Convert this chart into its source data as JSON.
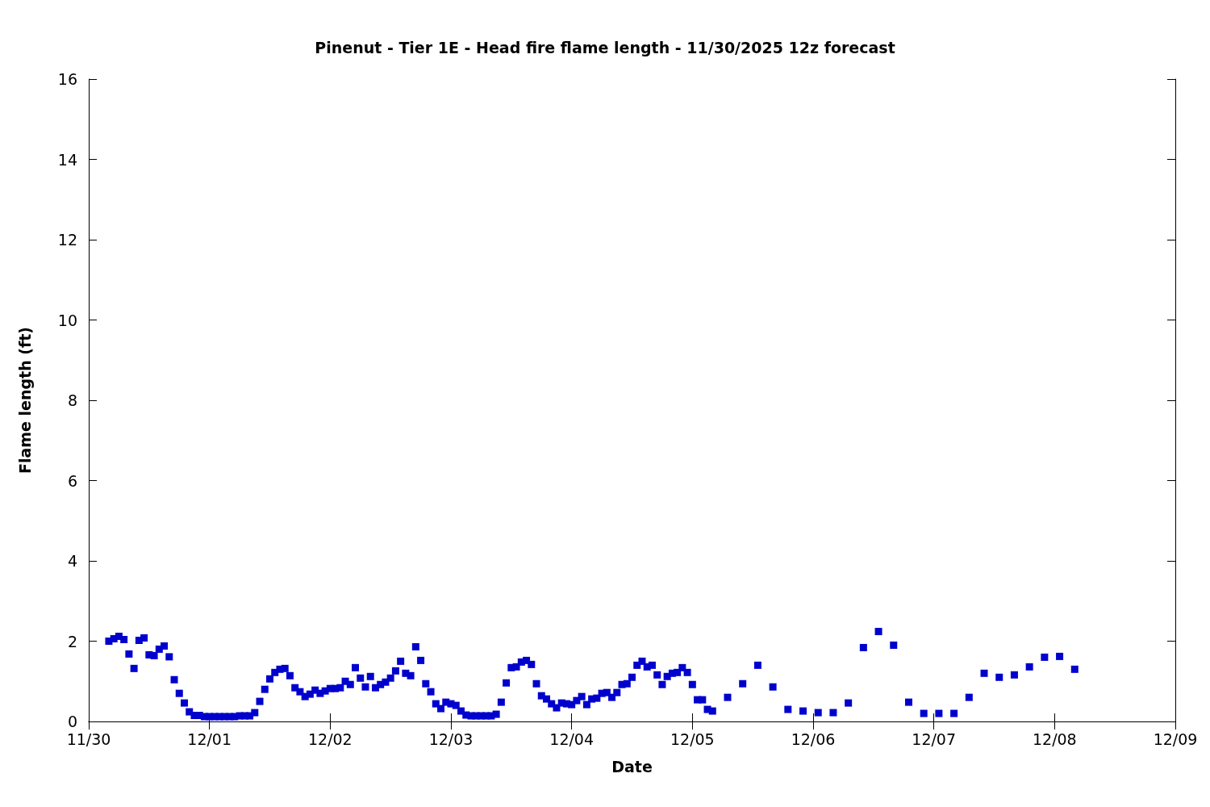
{
  "chart_data": {
    "type": "scatter",
    "title": "Pinenut - Tier 1E - Head fire flame length - 11/30/2025 12z forecast",
    "xlabel": "Date",
    "ylabel": "Flame length (ft)",
    "x": [
      "2025-11-30T04:00",
      "2025-11-30T05:00",
      "2025-11-30T06:00",
      "2025-11-30T07:00",
      "2025-11-30T08:00",
      "2025-11-30T09:00",
      "2025-11-30T10:00",
      "2025-11-30T11:00",
      "2025-11-30T12:00",
      "2025-11-30T13:00",
      "2025-11-30T14:00",
      "2025-11-30T15:00",
      "2025-11-30T16:00",
      "2025-11-30T17:00",
      "2025-11-30T18:00",
      "2025-11-30T19:00",
      "2025-11-30T20:00",
      "2025-11-30T21:00",
      "2025-11-30T22:00",
      "2025-11-30T23:00",
      "2025-12-01T00:00",
      "2025-12-01T01:00",
      "2025-12-01T02:00",
      "2025-12-01T03:00",
      "2025-12-01T04:00",
      "2025-12-01T05:00",
      "2025-12-01T06:00",
      "2025-12-01T07:00",
      "2025-12-01T08:00",
      "2025-12-01T09:00",
      "2025-12-01T10:00",
      "2025-12-01T11:00",
      "2025-12-01T12:00",
      "2025-12-01T13:00",
      "2025-12-01T14:00",
      "2025-12-01T15:00",
      "2025-12-01T16:00",
      "2025-12-01T17:00",
      "2025-12-01T18:00",
      "2025-12-01T19:00",
      "2025-12-01T20:00",
      "2025-12-01T21:00",
      "2025-12-01T22:00",
      "2025-12-01T23:00",
      "2025-12-02T00:00",
      "2025-12-02T01:00",
      "2025-12-02T02:00",
      "2025-12-02T03:00",
      "2025-12-02T04:00",
      "2025-12-02T05:00",
      "2025-12-02T06:00",
      "2025-12-02T07:00",
      "2025-12-02T08:00",
      "2025-12-02T09:00",
      "2025-12-02T10:00",
      "2025-12-02T11:00",
      "2025-12-02T12:00",
      "2025-12-02T13:00",
      "2025-12-02T14:00",
      "2025-12-02T15:00",
      "2025-12-02T16:00",
      "2025-12-02T17:00",
      "2025-12-02T18:00",
      "2025-12-02T19:00",
      "2025-12-02T20:00",
      "2025-12-02T21:00",
      "2025-12-02T22:00",
      "2025-12-02T23:00",
      "2025-12-03T00:00",
      "2025-12-03T01:00",
      "2025-12-03T02:00",
      "2025-12-03T03:00",
      "2025-12-03T04:00",
      "2025-12-03T05:00",
      "2025-12-03T06:00",
      "2025-12-03T07:00",
      "2025-12-03T08:00",
      "2025-12-03T09:00",
      "2025-12-03T10:00",
      "2025-12-03T11:00",
      "2025-12-03T12:00",
      "2025-12-03T13:00",
      "2025-12-03T14:00",
      "2025-12-03T15:00",
      "2025-12-03T16:00",
      "2025-12-03T17:00",
      "2025-12-03T18:00",
      "2025-12-03T19:00",
      "2025-12-03T20:00",
      "2025-12-03T21:00",
      "2025-12-03T22:00",
      "2025-12-03T23:00",
      "2025-12-04T00:00",
      "2025-12-04T01:00",
      "2025-12-04T02:00",
      "2025-12-04T03:00",
      "2025-12-04T04:00",
      "2025-12-04T05:00",
      "2025-12-04T06:00",
      "2025-12-04T07:00",
      "2025-12-04T08:00",
      "2025-12-04T09:00",
      "2025-12-04T10:00",
      "2025-12-04T11:00",
      "2025-12-04T12:00",
      "2025-12-04T13:00",
      "2025-12-04T14:00",
      "2025-12-04T15:00",
      "2025-12-04T16:00",
      "2025-12-04T17:00",
      "2025-12-04T18:00",
      "2025-12-04T19:00",
      "2025-12-04T20:00",
      "2025-12-04T21:00",
      "2025-12-04T22:00",
      "2025-12-04T23:00",
      "2025-12-05T00:00",
      "2025-12-05T01:00",
      "2025-12-05T02:00",
      "2025-12-05T03:00",
      "2025-12-05T04:00",
      "2025-12-05T07:00",
      "2025-12-05T10:00",
      "2025-12-05T13:00",
      "2025-12-05T16:00",
      "2025-12-05T19:00",
      "2025-12-05T22:00",
      "2025-12-06T01:00",
      "2025-12-06T04:00",
      "2025-12-06T07:00",
      "2025-12-06T10:00",
      "2025-12-06T13:00",
      "2025-12-06T16:00",
      "2025-12-06T19:00",
      "2025-12-06T22:00",
      "2025-12-07T01:00",
      "2025-12-07T04:00",
      "2025-12-07T07:00",
      "2025-12-07T10:00",
      "2025-12-07T13:00",
      "2025-12-07T16:00",
      "2025-12-07T19:00",
      "2025-12-07T22:00",
      "2025-12-08T01:00",
      "2025-12-08T04:00"
    ],
    "values": [
      2.0,
      2.06,
      2.12,
      2.04,
      1.68,
      1.32,
      2.02,
      2.08,
      1.66,
      1.64,
      1.8,
      1.88,
      1.61,
      1.04,
      0.7,
      0.46,
      0.24,
      0.15,
      0.15,
      0.12,
      0.12,
      0.12,
      0.12,
      0.12,
      0.12,
      0.12,
      0.14,
      0.14,
      0.14,
      0.22,
      0.5,
      0.8,
      1.06,
      1.22,
      1.3,
      1.32,
      1.14,
      0.84,
      0.74,
      0.62,
      0.68,
      0.78,
      0.7,
      0.76,
      0.82,
      0.82,
      0.84,
      1.0,
      0.92,
      1.34,
      1.08,
      0.86,
      1.12,
      0.84,
      0.92,
      0.98,
      1.08,
      1.26,
      1.5,
      1.2,
      1.14,
      1.86,
      1.52,
      0.94,
      0.74,
      0.44,
      0.32,
      0.48,
      0.44,
      0.4,
      0.26,
      0.16,
      0.14,
      0.14,
      0.14,
      0.14,
      0.14,
      0.18,
      0.48,
      0.96,
      1.34,
      1.36,
      1.48,
      1.52,
      1.42,
      0.94,
      0.64,
      0.56,
      0.44,
      0.34,
      0.46,
      0.44,
      0.42,
      0.52,
      0.62,
      0.42,
      0.56,
      0.58,
      0.7,
      0.72,
      0.6,
      0.72,
      0.92,
      0.94,
      1.1,
      1.4,
      1.5,
      1.36,
      1.4,
      1.16,
      0.92,
      1.12,
      1.2,
      1.22,
      1.34,
      1.22,
      0.92,
      0.54,
      0.54,
      0.3,
      0.26,
      0.6,
      0.94,
      1.4,
      0.86,
      0.3,
      0.26,
      0.22,
      0.22,
      0.46,
      1.84,
      2.24,
      1.9,
      0.48,
      0.2,
      0.2,
      0.2,
      0.6,
      1.2,
      1.1,
      1.16,
      1.36,
      1.6,
      1.62,
      1.3
    ],
    "color": "#0000cd",
    "marker": "square",
    "grid": false,
    "xlim": [
      "2025-11-30",
      "2025-12-09"
    ],
    "xticks": [
      {
        "value": "2025-11-30",
        "label": "11/30"
      },
      {
        "value": "2025-12-01",
        "label": "12/01"
      },
      {
        "value": "2025-12-02",
        "label": "12/02"
      },
      {
        "value": "2025-12-03",
        "label": "12/03"
      },
      {
        "value": "2025-12-04",
        "label": "12/04"
      },
      {
        "value": "2025-12-05",
        "label": "12/05"
      },
      {
        "value": "2025-12-06",
        "label": "12/06"
      },
      {
        "value": "2025-12-07",
        "label": "12/07"
      },
      {
        "value": "2025-12-08",
        "label": "12/08"
      },
      {
        "value": "2025-12-09",
        "label": "12/09"
      }
    ],
    "ylim": [
      0,
      16
    ],
    "yticks": [
      0,
      2,
      4,
      6,
      8,
      10,
      12,
      14,
      16
    ]
  }
}
